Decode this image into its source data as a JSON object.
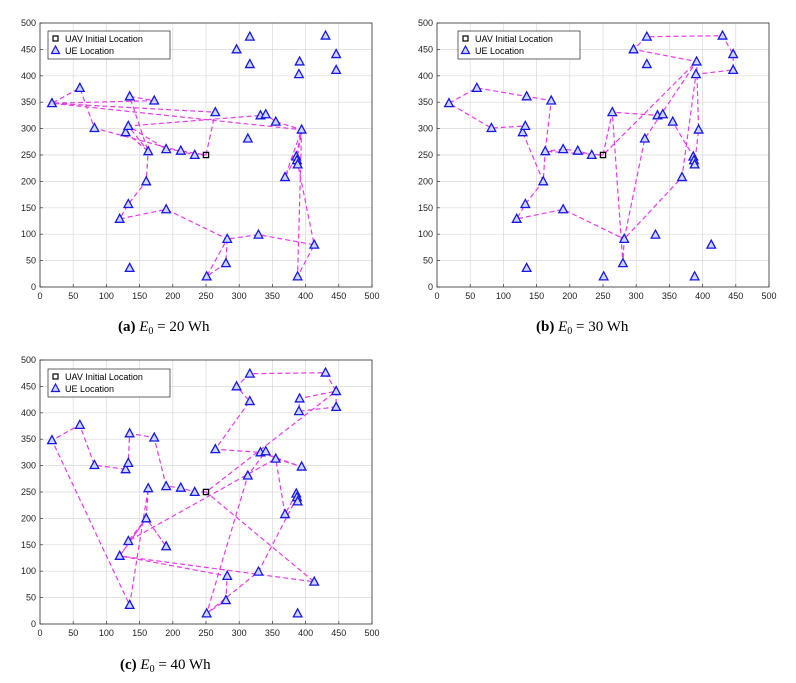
{
  "ue_locations": [
    [
      18,
      348
    ],
    [
      60,
      377
    ],
    [
      82,
      301
    ],
    [
      120,
      129
    ],
    [
      129,
      293
    ],
    [
      133,
      157
    ],
    [
      133,
      305
    ],
    [
      135,
      36
    ],
    [
      135,
      361
    ],
    [
      160,
      200
    ],
    [
      163,
      257
    ],
    [
      172,
      353
    ],
    [
      190,
      147
    ],
    [
      190,
      261
    ],
    [
      212,
      258
    ],
    [
      233,
      250
    ],
    [
      251,
      20
    ],
    [
      264,
      331
    ],
    [
      280,
      45
    ],
    [
      282,
      91
    ],
    [
      296,
      450
    ],
    [
      313,
      281
    ],
    [
      316,
      422
    ],
    [
      316,
      474
    ],
    [
      329,
      99
    ],
    [
      332,
      325
    ],
    [
      340,
      327
    ],
    [
      355,
      313
    ],
    [
      369,
      208
    ],
    [
      386,
      247
    ],
    [
      387,
      240
    ],
    [
      388,
      232
    ],
    [
      388,
      20
    ],
    [
      390,
      403
    ],
    [
      391,
      427
    ],
    [
      394,
      298
    ],
    [
      413,
      80
    ],
    [
      430,
      476
    ],
    [
      446,
      441
    ],
    [
      446,
      411
    ]
  ],
  "uav_initial": [
    250,
    250
  ],
  "chart_data": [
    {
      "id": "a",
      "type": "scatter",
      "caption": {
        "label": "(a)",
        "text": " = 20 Wh"
      },
      "xlim": [
        0,
        500
      ],
      "ylim": [
        0,
        500
      ],
      "xticks": [
        "0",
        "50",
        "100",
        "150",
        "200",
        "250",
        "300",
        "350",
        "400",
        "450",
        "500"
      ],
      "yticks": [
        "0",
        "50",
        "100",
        "150",
        "200",
        "250",
        "300",
        "350",
        "400",
        "450",
        "500"
      ],
      "grid": true,
      "legend": {
        "position": "top-left",
        "entries": [
          "UAV Initial Location",
          "UE Location"
        ]
      },
      "series": [
        {
          "name": "UE Location",
          "marker": "triangle",
          "ref": "ue_locations"
        },
        {
          "name": "UAV Initial Location",
          "marker": "square",
          "ref": "uav_initial"
        },
        {
          "name": "UAV Trajectory",
          "style": "dashed",
          "color": "#e83ae8",
          "points": [
            [
              250,
              250
            ],
            [
              264,
              331
            ],
            [
              18,
              348
            ],
            [
              394,
              298
            ],
            [
              387,
              240
            ],
            [
              413,
              80
            ],
            [
              329,
              99
            ],
            [
              282,
              91
            ],
            [
              280,
              45
            ],
            [
              251,
              20
            ],
            [
              282,
              91
            ],
            [
              190,
              147
            ],
            [
              120,
              129
            ],
            [
              133,
              157
            ],
            [
              160,
              200
            ],
            [
              163,
              257
            ],
            [
              133,
              305
            ],
            [
              129,
              293
            ],
            [
              163,
              257
            ],
            [
              135,
              361
            ],
            [
              172,
              353
            ],
            [
              18,
              348
            ],
            [
              60,
              377
            ],
            [
              82,
              301
            ],
            [
              233,
              250
            ],
            [
              250,
              250
            ],
            [
              212,
              258
            ],
            [
              190,
              261
            ],
            [
              133,
              305
            ],
            [
              332,
              325
            ],
            [
              340,
              327
            ],
            [
              355,
              313
            ],
            [
              394,
              298
            ],
            [
              386,
              247
            ],
            [
              369,
              208
            ],
            [
              394,
              298
            ],
            [
              388,
              20
            ],
            [
              413,
              80
            ]
          ]
        }
      ]
    },
    {
      "id": "b",
      "type": "scatter",
      "caption": {
        "label": "(b)",
        "text": " = 30 Wh"
      },
      "xlim": [
        0,
        500
      ],
      "ylim": [
        0,
        500
      ],
      "xticks": [
        "0",
        "50",
        "100",
        "150",
        "200",
        "250",
        "300",
        "350",
        "400",
        "450",
        "500"
      ],
      "yticks": [
        "0",
        "50",
        "100",
        "150",
        "200",
        "250",
        "300",
        "350",
        "400",
        "450",
        "500"
      ],
      "grid": true,
      "legend": {
        "position": "top-left",
        "entries": [
          "UAV Initial Location",
          "UE Location"
        ]
      },
      "series": [
        {
          "name": "UE Location",
          "marker": "triangle",
          "ref": "ue_locations"
        },
        {
          "name": "UAV Initial Location",
          "marker": "square",
          "ref": "uav_initial"
        },
        {
          "name": "UAV Trajectory",
          "style": "dashed",
          "color": "#e83ae8",
          "points": [
            [
              250,
              250
            ],
            [
              264,
              331
            ],
            [
              332,
              325
            ],
            [
              340,
              327
            ],
            [
              355,
              313
            ],
            [
              386,
              247
            ],
            [
              388,
              232
            ],
            [
              394,
              298
            ],
            [
              391,
              427
            ],
            [
              296,
              450
            ],
            [
              316,
              474
            ],
            [
              430,
              476
            ],
            [
              446,
              441
            ],
            [
              446,
              411
            ],
            [
              390,
              403
            ],
            [
              369,
              208
            ],
            [
              282,
              91
            ],
            [
              313,
              281
            ],
            [
              391,
              427
            ],
            [
              250,
              250
            ],
            [
              233,
              250
            ],
            [
              212,
              258
            ],
            [
              190,
              261
            ],
            [
              163,
              257
            ],
            [
              160,
              200
            ],
            [
              133,
              157
            ],
            [
              120,
              129
            ],
            [
              190,
              147
            ],
            [
              282,
              91
            ],
            [
              280,
              45
            ],
            [
              264,
              331
            ],
            [
              250,
              250
            ],
            [
              163,
              257
            ],
            [
              172,
              353
            ],
            [
              60,
              377
            ],
            [
              18,
              348
            ],
            [
              82,
              301
            ],
            [
              133,
              305
            ],
            [
              129,
              293
            ],
            [
              160,
              200
            ]
          ]
        }
      ]
    },
    {
      "id": "c",
      "type": "scatter",
      "caption": {
        "label": "(c)",
        "text": " = 40 Wh"
      },
      "xlim": [
        0,
        500
      ],
      "ylim": [
        0,
        500
      ],
      "xticks": [
        "0",
        "50",
        "100",
        "150",
        "200",
        "250",
        "300",
        "350",
        "400",
        "450",
        "500"
      ],
      "yticks": [
        "0",
        "50",
        "100",
        "150",
        "200",
        "250",
        "300",
        "350",
        "400",
        "450",
        "500"
      ],
      "grid": true,
      "legend": {
        "position": "top-left",
        "entries": [
          "UAV Initial Location",
          "UE Location"
        ]
      },
      "series": [
        {
          "name": "UE Location",
          "marker": "triangle",
          "ref": "ue_locations"
        },
        {
          "name": "UAV Initial Location",
          "marker": "square",
          "ref": "uav_initial"
        },
        {
          "name": "UAV Trajectory",
          "style": "dashed",
          "color": "#e83ae8",
          "points": [
            [
              250,
              250
            ],
            [
              233,
              250
            ],
            [
              212,
              258
            ],
            [
              190,
              261
            ],
            [
              172,
              353
            ],
            [
              135,
              361
            ],
            [
              133,
              305
            ],
            [
              129,
              293
            ],
            [
              82,
              301
            ],
            [
              60,
              377
            ],
            [
              18,
              348
            ],
            [
              135,
              36
            ],
            [
              163,
              257
            ],
            [
              160,
              200
            ],
            [
              190,
              147
            ],
            [
              160,
              200
            ],
            [
              133,
              157
            ],
            [
              355,
              313
            ],
            [
              394,
              298
            ],
            [
              332,
              325
            ],
            [
              264,
              331
            ],
            [
              316,
              422
            ],
            [
              296,
              450
            ],
            [
              316,
              474
            ],
            [
              430,
              476
            ],
            [
              446,
              441
            ],
            [
              391,
              427
            ],
            [
              390,
              403
            ],
            [
              446,
              411
            ],
            [
              446,
              441
            ],
            [
              250,
              250
            ],
            [
              413,
              80
            ],
            [
              120,
              129
            ],
            [
              160,
              200
            ],
            [
              120,
              129
            ],
            [
              282,
              91
            ],
            [
              280,
              45
            ],
            [
              251,
              20
            ],
            [
              313,
              281
            ],
            [
              340,
              327
            ],
            [
              355,
              313
            ],
            [
              369,
              208
            ],
            [
              386,
              247
            ],
            [
              387,
              240
            ],
            [
              329,
              99
            ],
            [
              251,
              20
            ]
          ]
        }
      ]
    }
  ]
}
